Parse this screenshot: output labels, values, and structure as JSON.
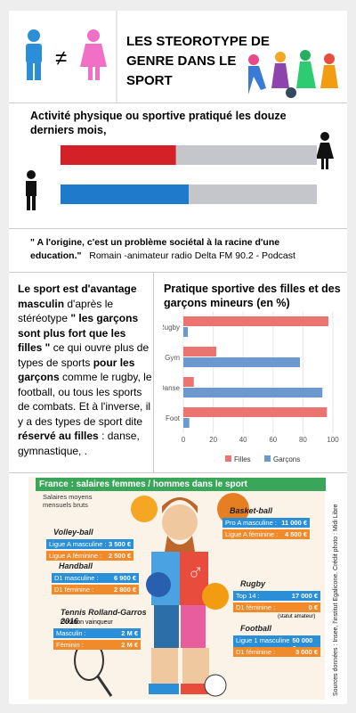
{
  "header": {
    "symbol": "≠",
    "title": "LES STEOROTYPE DE GENRE DANS LE SPORT"
  },
  "activity": {
    "title": "Activité physique ou sportive pratiqué les douze derniers mois,",
    "xlim": [
      0,
      100
    ],
    "bars": [
      {
        "color": "#d42027",
        "value": 45
      },
      {
        "color": "#1f7acb",
        "value": 50
      }
    ],
    "track_color": "#c4c6cc"
  },
  "quote": {
    "text": "\" A l'origine, c'est un problème sociétal à la racine d'une education.\"",
    "author": "Romain -animateur radio Delta FM 90.2 - Podcast"
  },
  "paragraph": [
    "Le sport est d'avantage masculin",
    "d'après le stéréotype",
    "\" les garçons sont plus fort que les filles \"",
    "ce qui ouvre plus de types de sports",
    "pour les garçons",
    "comme le rugby, le football, ou tous les sports de combats. Et à l'inverse, il y a des types de sport dite",
    "réservé au filles",
    ": danse, gymnastique, ."
  ],
  "chart_data": {
    "type": "hbar",
    "title": "Pratique sportive des filles et des garçons mineurs (en %)",
    "categories": [
      "Rugby",
      "Gym",
      "Danse",
      "Foot"
    ],
    "series": [
      {
        "name": "Filles",
        "color": "#ec7470",
        "values": [
          97,
          22,
          7,
          96
        ]
      },
      {
        "name": "Garçons",
        "color": "#6a98cf",
        "values": [
          3,
          78,
          93,
          4
        ]
      }
    ],
    "xlim": [
      0,
      100
    ],
    "xticks": [
      0,
      20,
      40,
      60,
      80,
      100
    ],
    "legend": "bottom"
  },
  "salaries": {
    "title": "France : salaires femmes / hommes dans le sport",
    "subtitle": "Salaires moyens mensuels bruts",
    "credits": "Sources données : Insee, l'institut Egalicone. Crédit photo : Midi Libre",
    "sports": [
      {
        "name": "Volley-ball",
        "lines": [
          {
            "label": "Ligue A masculine :",
            "amount": "3 500 €"
          },
          {
            "label": "Ligue A féminine :",
            "amount": "2 500 €"
          }
        ]
      },
      {
        "name": "Basket-ball",
        "lines": [
          {
            "label": "Pro A masculine :",
            "amount": "11 000 €"
          },
          {
            "label": "Ligue A féminine :",
            "amount": "4 500 €"
          }
        ]
      },
      {
        "name": "Handball",
        "lines": [
          {
            "label": "D1 masculine :",
            "amount": "6 900 €"
          },
          {
            "label": "D1 féminine :",
            "amount": "2 800 €"
          }
        ]
      },
      {
        "name": "Rugby",
        "lines": [
          {
            "label": "Top 14 :",
            "amount": "17 000 €"
          },
          {
            "label": "D1 féminine :",
            "amount": "0 €"
          }
        ],
        "note": "(statut amateur)"
      },
      {
        "name": "Tennis Rolland-Garros 2016",
        "sub": "Dotation vainqueur",
        "lines": [
          {
            "label": "Masculin :",
            "amount": "2 M €"
          },
          {
            "label": "Féminin :",
            "amount": "2 M €"
          }
        ]
      },
      {
        "name": "Football",
        "lines": [
          {
            "label": "Ligue 1 masculine :",
            "amount": "50 000 €"
          },
          {
            "label": "D1 féminine :",
            "amount": "3 000 €"
          }
        ]
      }
    ]
  }
}
